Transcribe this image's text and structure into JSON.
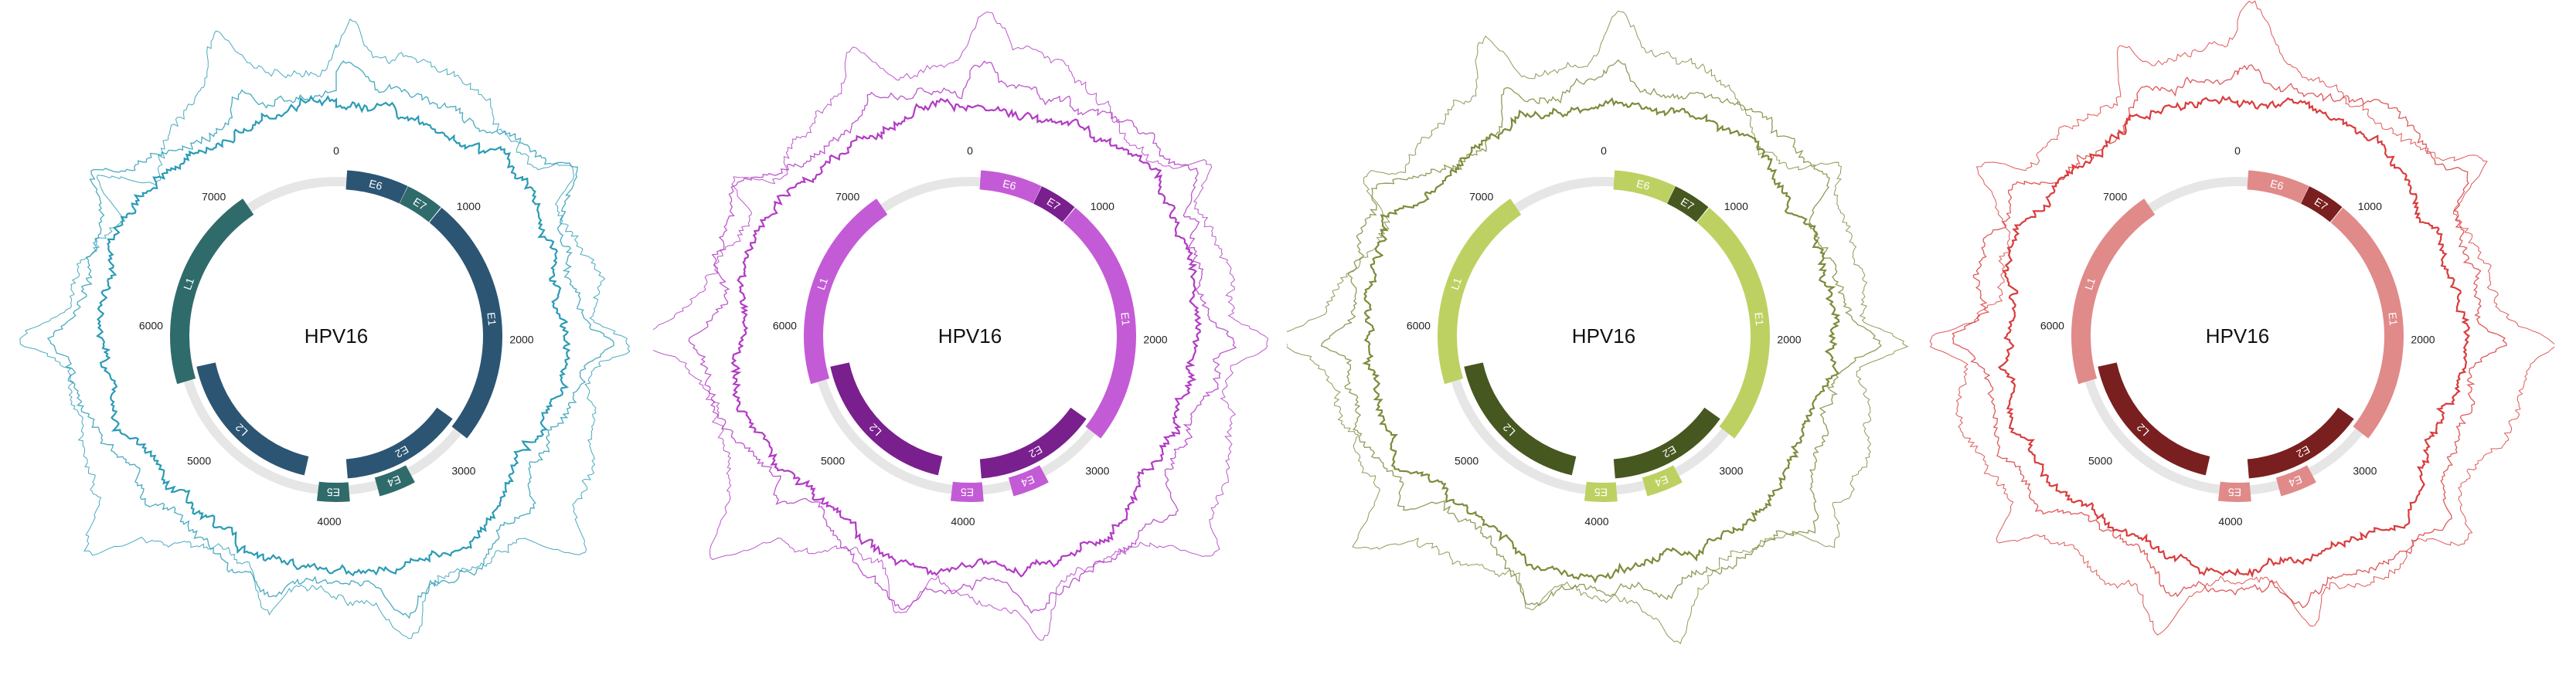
{
  "chart_data": [
    {
      "type": "circular-genome",
      "title": "HPV16",
      "genome_length": 7906,
      "ticks": [
        "0",
        "1000",
        "2000",
        "3000",
        "4000",
        "5000",
        "6000",
        "7000"
      ],
      "colors": {
        "light": "#2f6b6b",
        "dark": "#2c5574",
        "trace": "#2a9bb5"
      },
      "genes": [
        {
          "name": "E6",
          "start": 83,
          "end": 559,
          "tone": "dark",
          "ring": "outer"
        },
        {
          "name": "E7",
          "start": 562,
          "end": 858,
          "tone": "light",
          "ring": "outer"
        },
        {
          "name": "E1",
          "start": 865,
          "end": 2813,
          "tone": "dark",
          "ring": "outer"
        },
        {
          "name": "E2",
          "start": 2755,
          "end": 3852,
          "tone": "dark",
          "ring": "inner"
        },
        {
          "name": "E4",
          "start": 3332,
          "end": 3619,
          "tone": "light",
          "ring": "outer"
        },
        {
          "name": "E5",
          "start": 3849,
          "end": 4100,
          "tone": "light",
          "ring": "outer"
        },
        {
          "name": "L2",
          "start": 4236,
          "end": 5657,
          "tone": "dark",
          "ring": "inner"
        },
        {
          "name": "L1",
          "start": 5560,
          "end": 7155,
          "tone": "light",
          "ring": "outer"
        }
      ]
    },
    {
      "type": "circular-genome",
      "title": "HPV16",
      "genome_length": 7906,
      "ticks": [
        "0",
        "1000",
        "2000",
        "3000",
        "4000",
        "5000",
        "6000",
        "7000"
      ],
      "colors": {
        "light": "#c45bd6",
        "dark": "#7a1f8e",
        "trace": "#b23ac4"
      },
      "genes": [
        {
          "name": "E6",
          "start": 83,
          "end": 559,
          "tone": "light",
          "ring": "outer"
        },
        {
          "name": "E7",
          "start": 562,
          "end": 858,
          "tone": "dark",
          "ring": "outer"
        },
        {
          "name": "E1",
          "start": 865,
          "end": 2813,
          "tone": "light",
          "ring": "outer"
        },
        {
          "name": "E2",
          "start": 2755,
          "end": 3852,
          "tone": "dark",
          "ring": "inner"
        },
        {
          "name": "E4",
          "start": 3332,
          "end": 3619,
          "tone": "light",
          "ring": "outer"
        },
        {
          "name": "E5",
          "start": 3849,
          "end": 4100,
          "tone": "light",
          "ring": "outer"
        },
        {
          "name": "L2",
          "start": 4236,
          "end": 5657,
          "tone": "dark",
          "ring": "inner"
        },
        {
          "name": "L1",
          "start": 5560,
          "end": 7155,
          "tone": "light",
          "ring": "outer"
        }
      ]
    },
    {
      "type": "circular-genome",
      "title": "HPV16",
      "genome_length": 7906,
      "ticks": [
        "0",
        "1000",
        "2000",
        "3000",
        "4000",
        "5000",
        "6000",
        "7000"
      ],
      "colors": {
        "light": "#bdd162",
        "dark": "#475720",
        "trace": "#7d8a3a"
      },
      "genes": [
        {
          "name": "E6",
          "start": 83,
          "end": 559,
          "tone": "light",
          "ring": "outer"
        },
        {
          "name": "E7",
          "start": 562,
          "end": 858,
          "tone": "dark",
          "ring": "outer"
        },
        {
          "name": "E1",
          "start": 865,
          "end": 2813,
          "tone": "light",
          "ring": "outer"
        },
        {
          "name": "E2",
          "start": 2755,
          "end": 3852,
          "tone": "dark",
          "ring": "inner"
        },
        {
          "name": "E4",
          "start": 3332,
          "end": 3619,
          "tone": "light",
          "ring": "outer"
        },
        {
          "name": "E5",
          "start": 3849,
          "end": 4100,
          "tone": "light",
          "ring": "outer"
        },
        {
          "name": "L2",
          "start": 4236,
          "end": 5657,
          "tone": "dark",
          "ring": "inner"
        },
        {
          "name": "L1",
          "start": 5560,
          "end": 7155,
          "tone": "light",
          "ring": "outer"
        }
      ]
    },
    {
      "type": "circular-genome",
      "title": "HPV16",
      "genome_length": 7906,
      "ticks": [
        "0",
        "1000",
        "2000",
        "3000",
        "4000",
        "5000",
        "6000",
        "7000"
      ],
      "colors": {
        "light": "#e08a8a",
        "dark": "#7a1f1f",
        "trace": "#d93c3c"
      },
      "genes": [
        {
          "name": "E6",
          "start": 83,
          "end": 559,
          "tone": "light",
          "ring": "outer"
        },
        {
          "name": "E7",
          "start": 562,
          "end": 858,
          "tone": "dark",
          "ring": "outer"
        },
        {
          "name": "E1",
          "start": 865,
          "end": 2813,
          "tone": "light",
          "ring": "outer"
        },
        {
          "name": "E2",
          "start": 2755,
          "end": 3852,
          "tone": "dark",
          "ring": "inner"
        },
        {
          "name": "E4",
          "start": 3332,
          "end": 3619,
          "tone": "light",
          "ring": "outer"
        },
        {
          "name": "E5",
          "start": 3849,
          "end": 4100,
          "tone": "light",
          "ring": "outer"
        },
        {
          "name": "L2",
          "start": 4236,
          "end": 5657,
          "tone": "dark",
          "ring": "inner"
        },
        {
          "name": "L1",
          "start": 5560,
          "end": 7155,
          "tone": "light",
          "ring": "outer"
        }
      ]
    }
  ]
}
